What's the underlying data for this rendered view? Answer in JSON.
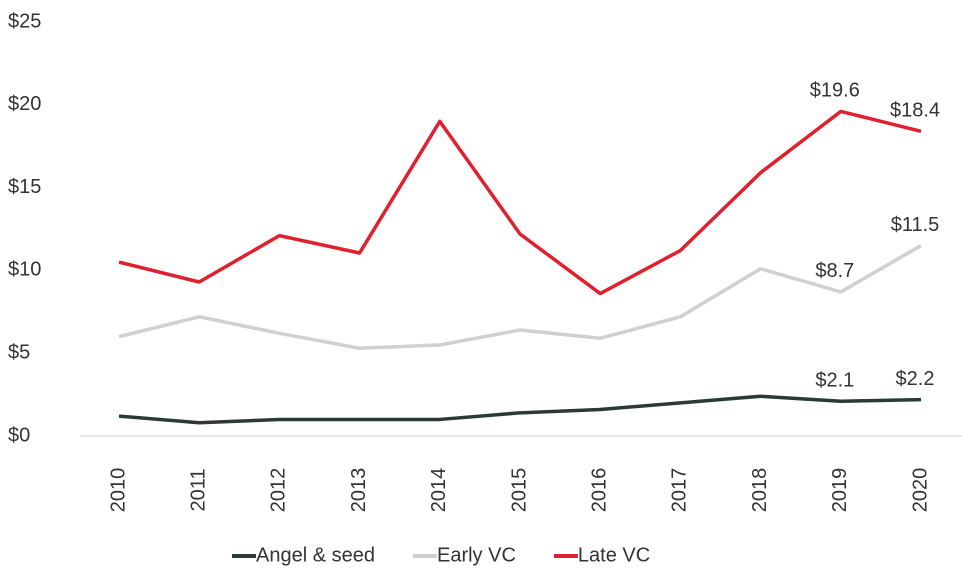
{
  "chart_data": {
    "type": "line",
    "categories": [
      "2010",
      "2011",
      "2012",
      "2013",
      "2014",
      "2015",
      "2016",
      "2017",
      "2018",
      "2019",
      "2020"
    ],
    "series": [
      {
        "name": "Angel & seed",
        "color": "#2b3a33",
        "values": [
          1.2,
          0.8,
          1.0,
          1.0,
          1.0,
          1.4,
          1.6,
          2.0,
          2.4,
          2.1,
          2.2
        ],
        "value_labels": [
          null,
          null,
          null,
          null,
          null,
          null,
          null,
          null,
          null,
          "$2.1",
          "$2.2"
        ]
      },
      {
        "name": "Early VC",
        "color": "#d0d0d0",
        "values": [
          6.0,
          7.2,
          6.2,
          5.3,
          5.5,
          6.4,
          5.9,
          7.2,
          10.1,
          8.7,
          11.5
        ],
        "value_labels": [
          null,
          null,
          null,
          null,
          null,
          null,
          null,
          null,
          null,
          "$8.7",
          "$11.5"
        ]
      },
      {
        "name": "Late VC",
        "color": "#e0202e",
        "values": [
          10.5,
          9.3,
          12.1,
          11.05,
          19.0,
          12.2,
          8.6,
          11.2,
          15.9,
          19.6,
          18.4
        ],
        "value_labels": [
          null,
          null,
          null,
          null,
          null,
          null,
          null,
          null,
          null,
          "$19.6",
          "$18.4"
        ]
      }
    ],
    "ylim": [
      0,
      25
    ],
    "yticks": [
      {
        "value": 0,
        "label": "$0"
      },
      {
        "value": 5,
        "label": "$5"
      },
      {
        "value": 10,
        "label": "$10"
      },
      {
        "value": 15,
        "label": "$15"
      },
      {
        "value": 20,
        "label": "$20"
      },
      {
        "value": 25,
        "label": "$25"
      }
    ],
    "legend": "bottom"
  }
}
